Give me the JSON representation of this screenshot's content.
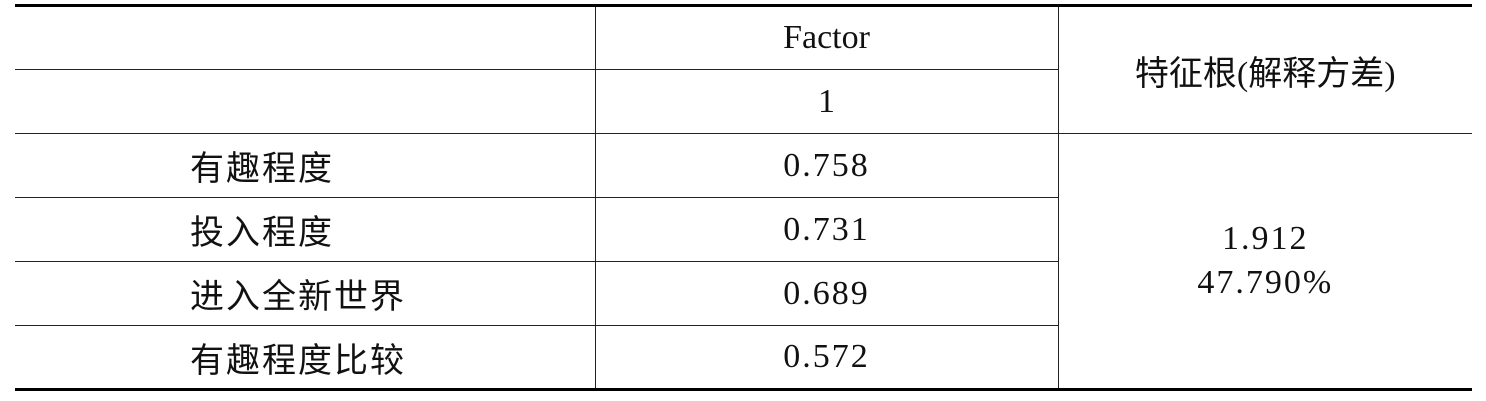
{
  "table": {
    "header": {
      "factor": "Factor",
      "factor_number": "1",
      "eigen": "特征根(解释方差)"
    },
    "rows": [
      [
        "有趣程度",
        "0.758"
      ],
      [
        "投入程度",
        "0.731"
      ],
      [
        "进入全新世界",
        "0.689"
      ],
      [
        "有趣程度比较",
        "0.572"
      ]
    ],
    "eigenvalue": "1.912",
    "explained_variance": "47.790%"
  }
}
